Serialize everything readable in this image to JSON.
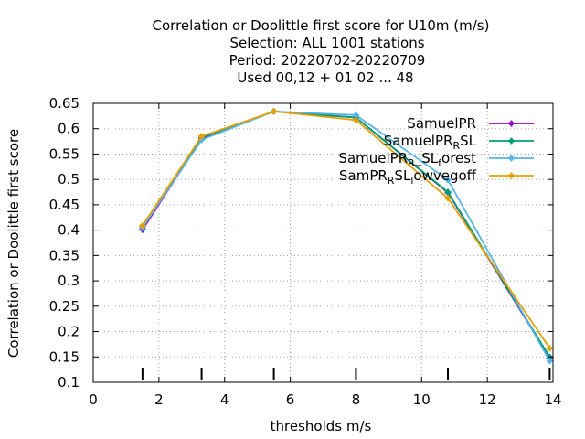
{
  "chart_data": {
    "type": "line",
    "title_lines": [
      "Correlation or Doolittle first score  for U10m (m/s)",
      "Selection: ALL   1001 stations",
      "Period: 20220702-20220709",
      "Used  00,12  + 01 02 ... 48"
    ],
    "xlabel": "thresholds m/s",
    "ylabel": "Correlation or Doolittle first score",
    "xlim": [
      0,
      14
    ],
    "ylim": [
      0.1,
      0.65
    ],
    "xticks": [
      0,
      2,
      4,
      6,
      8,
      10,
      12,
      14
    ],
    "yticks": [
      0.1,
      0.15,
      0.2,
      0.25,
      0.3,
      0.35,
      0.4,
      0.45,
      0.5,
      0.55,
      0.6,
      0.65
    ],
    "ytick_labels": [
      "0.1",
      "0.15",
      "0.2",
      "0.25",
      "0.3",
      "0.35",
      "0.4",
      "0.45",
      "0.5",
      "0.55",
      "0.6",
      "0.65"
    ],
    "grid": true,
    "legend_position": "top-right",
    "threshold_markers": [
      1.5,
      3.3,
      5.5,
      8.0,
      10.8,
      13.9
    ],
    "series": [
      {
        "name": "SamuelPR",
        "legend_base": "SamuelPR",
        "legend_sub": "",
        "legend_rest": "",
        "legend_sub2": "",
        "legend_tail": "",
        "color": "#9400d3",
        "x": [
          1.5,
          3.3,
          5.5,
          8.0,
          10.8,
          13.9
        ],
        "y": [
          0.401,
          0.581,
          0.634,
          0.622,
          0.474,
          0.148
        ]
      },
      {
        "name": "SamuelPR_RSL",
        "legend_base": "SamuelPR",
        "legend_sub": "R",
        "legend_rest": "SL",
        "legend_sub2": "",
        "legend_tail": "",
        "color": "#009e73",
        "x": [
          1.5,
          3.3,
          5.5,
          8.0,
          10.8,
          13.9
        ],
        "y": [
          0.404,
          0.583,
          0.634,
          0.622,
          0.475,
          0.15
        ]
      },
      {
        "name": "SamuelPR_R_SL_forest",
        "legend_base": "SamuelPR",
        "legend_sub": "R",
        "legend_rest": "_SL",
        "legend_sub2": "f",
        "legend_tail": "orest",
        "color": "#56b4e9",
        "x": [
          1.5,
          3.3,
          5.5,
          8.0,
          10.8,
          13.9
        ],
        "y": [
          0.405,
          0.578,
          0.634,
          0.627,
          0.499,
          0.142
        ]
      },
      {
        "name": "SamPR_RSL_lowvegoff",
        "legend_base": "SamPR",
        "legend_sub": "R",
        "legend_rest": "SL",
        "legend_sub2": "l",
        "legend_tail": "owvegoff",
        "color": "#e69f00",
        "x": [
          1.5,
          3.3,
          5.5,
          8.0,
          10.8,
          13.9
        ],
        "y": [
          0.409,
          0.585,
          0.634,
          0.617,
          0.463,
          0.167
        ]
      }
    ]
  }
}
